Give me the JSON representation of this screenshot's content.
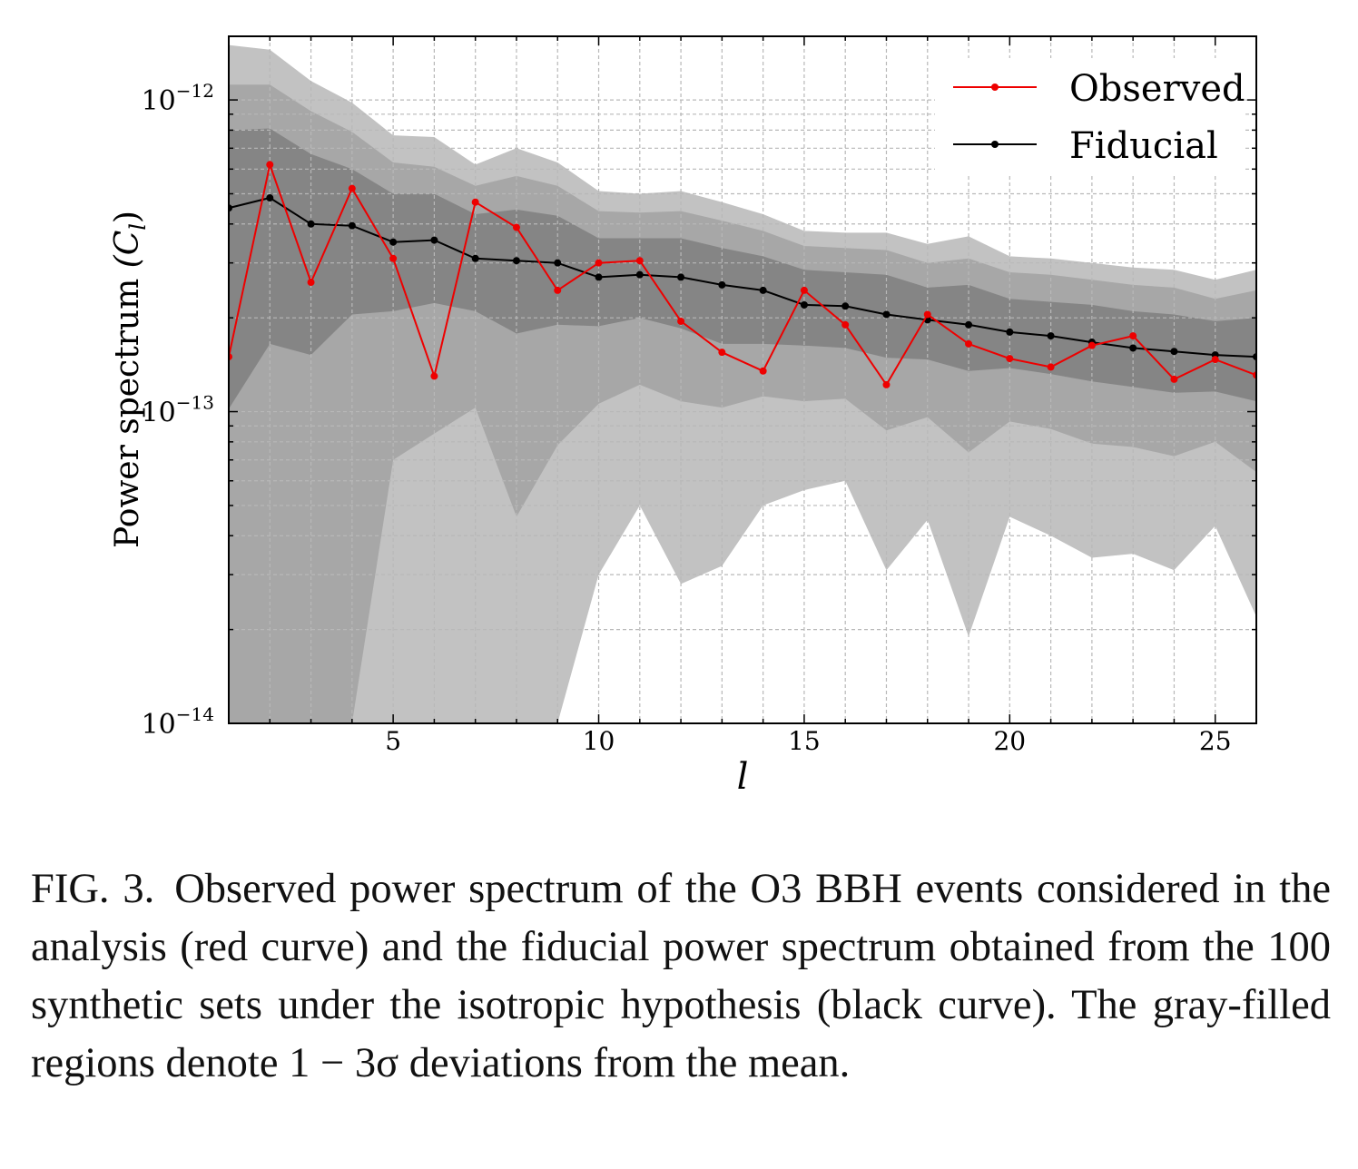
{
  "chart_data": {
    "type": "line",
    "title": "",
    "xlabel": "l",
    "ylabel_prefix": "Power spectrum ",
    "ylabel_symbol": "(C",
    "ylabel_subscript": "l",
    "ylabel_suffix": ")",
    "xlim": [
      1,
      26
    ],
    "ylim": [
      1e-14,
      1.6e-12
    ],
    "yscale": "log",
    "grid": true,
    "legend_position": "top-right",
    "x_ticks": [
      {
        "value": 5,
        "label": "5"
      },
      {
        "value": 10,
        "label": "10"
      },
      {
        "value": 15,
        "label": "15"
      },
      {
        "value": 20,
        "label": "20"
      },
      {
        "value": 25,
        "label": "25"
      }
    ],
    "y_ticks": [
      {
        "value": 1e-14,
        "base": "10",
        "exp": "−14"
      },
      {
        "value": 1e-13,
        "base": "10",
        "exp": "−13"
      },
      {
        "value": 1e-12,
        "base": "10",
        "exp": "−12"
      }
    ],
    "x": [
      1,
      2,
      3,
      4,
      5,
      6,
      7,
      8,
      9,
      10,
      11,
      12,
      13,
      14,
      15,
      16,
      17,
      18,
      19,
      20,
      21,
      22,
      23,
      24,
      25,
      26
    ],
    "series": [
      {
        "name": "Observed",
        "color": "#ee0000",
        "values": [
          1.5e-13,
          6.2e-13,
          2.6e-13,
          5.2e-13,
          3.1e-13,
          1.3e-13,
          4.7e-13,
          3.9e-13,
          2.45e-13,
          3e-13,
          3.05e-13,
          1.95e-13,
          1.55e-13,
          1.35e-13,
          2.45e-13,
          1.9e-13,
          1.22e-13,
          2.05e-13,
          1.65e-13,
          1.48e-13,
          1.39e-13,
          1.63e-13,
          1.75e-13,
          1.27e-13,
          1.47e-13,
          1.31e-13
        ]
      },
      {
        "name": "Fiducial",
        "color": "#000000",
        "values": [
          4.5e-13,
          4.85e-13,
          4e-13,
          3.95e-13,
          3.5e-13,
          3.55e-13,
          3.1e-13,
          3.05e-13,
          3e-13,
          2.7e-13,
          2.75e-13,
          2.7e-13,
          2.55e-13,
          2.45e-13,
          2.2e-13,
          2.18e-13,
          2.05e-13,
          1.97e-13,
          1.9e-13,
          1.8e-13,
          1.75e-13,
          1.67e-13,
          1.6e-13,
          1.56e-13,
          1.52e-13,
          1.5e-13
        ]
      }
    ],
    "bands": [
      {
        "name": "3-sigma",
        "color": "#c2c2c2",
        "upper": [
          1.5e-12,
          1.45e-12,
          1.15e-12,
          9.8e-13,
          7.7e-13,
          7.6e-13,
          6.2e-13,
          7e-13,
          6.3e-13,
          5.1e-13,
          5e-13,
          5.1e-13,
          4.7e-13,
          4.3e-13,
          3.8e-13,
          3.75e-13,
          3.75e-13,
          3.45e-13,
          3.65e-13,
          3.15e-13,
          3.1e-13,
          3e-13,
          2.9e-13,
          2.85e-13,
          2.65e-13,
          2.85e-13
        ],
        "lower": [
          1e-14,
          1e-14,
          1e-14,
          1e-14,
          1e-14,
          1e-14,
          1e-14,
          1e-14,
          1e-14,
          3e-14,
          5e-14,
          2.8e-14,
          3.2e-14,
          5e-14,
          5.6e-14,
          6e-14,
          3.1e-14,
          4.5e-14,
          1.9e-14,
          4.6e-14,
          4e-14,
          3.4e-14,
          3.5e-14,
          3.1e-14,
          4.3e-14,
          2.2e-14
        ]
      },
      {
        "name": "2-sigma",
        "color": "#a7a7a7",
        "upper": [
          1.12e-12,
          1.12e-12,
          9.2e-13,
          7.9e-13,
          6.3e-13,
          6.1e-13,
          5.3e-13,
          5.7e-13,
          5.3e-13,
          4.4e-13,
          4.35e-13,
          4.4e-13,
          4.1e-13,
          3.8e-13,
          3.4e-13,
          3.35e-13,
          3.3e-13,
          3e-13,
          3.1e-13,
          2.8e-13,
          2.75e-13,
          2.65e-13,
          2.55e-13,
          2.5e-13,
          2.3e-13,
          2.45e-13
        ],
        "lower": [
          1e-14,
          1e-14,
          1e-14,
          1e-14,
          7e-14,
          8.5e-14,
          1.03e-13,
          4.6e-14,
          7.8e-14,
          1.06e-13,
          1.22e-13,
          1.08e-13,
          1.03e-13,
          1.12e-13,
          1.08e-13,
          1.1e-13,
          8.7e-14,
          9.6e-14,
          7.4e-14,
          9.3e-14,
          8.8e-14,
          7.9e-14,
          7.7e-14,
          7.2e-14,
          8e-14,
          6.4e-14
        ]
      },
      {
        "name": "1-sigma",
        "color": "#858585",
        "upper": [
          8e-13,
          8.1e-13,
          6.7e-13,
          6e-13,
          5e-13,
          5e-13,
          4.3e-13,
          4.45e-13,
          4.25e-13,
          3.6e-13,
          3.6e-13,
          3.6e-13,
          3.35e-13,
          3.15e-13,
          2.85e-13,
          2.8e-13,
          2.75e-13,
          2.5e-13,
          2.55e-13,
          2.3e-13,
          2.25e-13,
          2.2e-13,
          2.1e-13,
          2.05e-13,
          1.95e-13,
          2e-13
        ],
        "lower": [
          1.02e-13,
          1.65e-13,
          1.52e-13,
          2.05e-13,
          2.1e-13,
          2.23e-13,
          2.1e-13,
          1.78e-13,
          1.9e-13,
          1.88e-13,
          2e-13,
          1.85e-13,
          1.65e-13,
          1.65e-13,
          1.63e-13,
          1.6e-13,
          1.49e-13,
          1.47e-13,
          1.35e-13,
          1.38e-13,
          1.32e-13,
          1.25e-13,
          1.2e-13,
          1.15e-13,
          1.16e-13,
          1.08e-13
        ]
      }
    ]
  },
  "legend": {
    "observed_label": "Observed",
    "fiducial_label": "Fiducial"
  },
  "caption": {
    "label": "FIG. 3.",
    "text_part1": "Observed power spectrum of the O3 BBH events considered in the analysis (red curve) and the fiducial power spectrum obtained from the 100 synthetic sets under the isotropic hypothesis (black curve). The gray-filled regions denote ",
    "math": "1 − 3σ",
    "text_part2": " deviations from the mean."
  }
}
